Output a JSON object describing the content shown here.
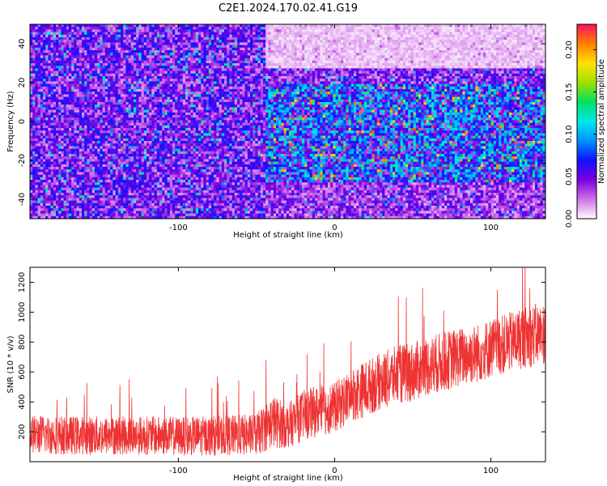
{
  "figure_title": "C2E1.2024.170.02.41.G19",
  "chart_data": [
    {
      "type": "heatmap",
      "xlabel": "Height of straight line (km)",
      "ylabel": "Frequency (Hz)",
      "xlim": [
        -195,
        135
      ],
      "ylim": [
        -50,
        50
      ],
      "xticks": [
        -100,
        0,
        100
      ],
      "yticks": [
        -40,
        -20,
        0,
        20,
        40
      ],
      "colorbar": {
        "label": "Normalized spectral amplitude",
        "range": [
          0.0,
          0.23
        ],
        "ticks": [
          0.0,
          0.05,
          0.1,
          0.15,
          0.2
        ],
        "tick_labels": [
          "0.00",
          "0.05",
          "0.10",
          "0.15",
          "0.20"
        ],
        "colormap": [
          "#ffffff",
          "#d070e8",
          "#7a00e0",
          "#1010ff",
          "#0090ff",
          "#00e8e8",
          "#00e060",
          "#a0e000",
          "#ffe000",
          "#ff8000",
          "#ff1060"
        ]
      },
      "regions": [
        {
          "x_range": [
            -195,
            -45
          ],
          "f_range": [
            -50,
            50
          ],
          "level": 0.045,
          "description_free": true
        },
        {
          "x_range": [
            -45,
            135
          ],
          "f_range": [
            28,
            50
          ],
          "level": 0.01
        },
        {
          "x_range": [
            -45,
            135
          ],
          "f_range": [
            -30,
            20
          ],
          "level": 0.075
        },
        {
          "x_range": [
            -45,
            135
          ],
          "f_range": [
            -50,
            -30
          ],
          "level": 0.035
        }
      ]
    },
    {
      "type": "line",
      "xlabel": "Height of straight line (km)",
      "ylabel": "SNR (10 * v/v)",
      "xlim": [
        -195,
        135
      ],
      "ylim": [
        0,
        1300
      ],
      "xticks": [
        -100,
        0,
        100
      ],
      "yticks": [
        200,
        400,
        600,
        800,
        1000,
        1200
      ],
      "color": "#ee3333",
      "series": [
        {
          "x": [
            -195,
            -170,
            -145,
            -120,
            -95,
            -70,
            -50,
            -40,
            -30,
            -20,
            -10,
            0,
            10,
            20,
            30,
            40,
            50,
            60,
            70,
            80,
            90,
            100,
            110,
            120,
            130,
            135
          ],
          "y": [
            185,
            175,
            175,
            175,
            170,
            175,
            180,
            270,
            240,
            310,
            340,
            360,
            440,
            490,
            540,
            580,
            600,
            640,
            670,
            700,
            720,
            760,
            790,
            830,
            850,
            860
          ],
          "spread": [
            130,
            130,
            130,
            130,
            130,
            135,
            140,
            180,
            150,
            170,
            170,
            170,
            180,
            190,
            190,
            200,
            200,
            200,
            200,
            200,
            200,
            200,
            200,
            210,
            210,
            210
          ]
        }
      ]
    }
  ]
}
